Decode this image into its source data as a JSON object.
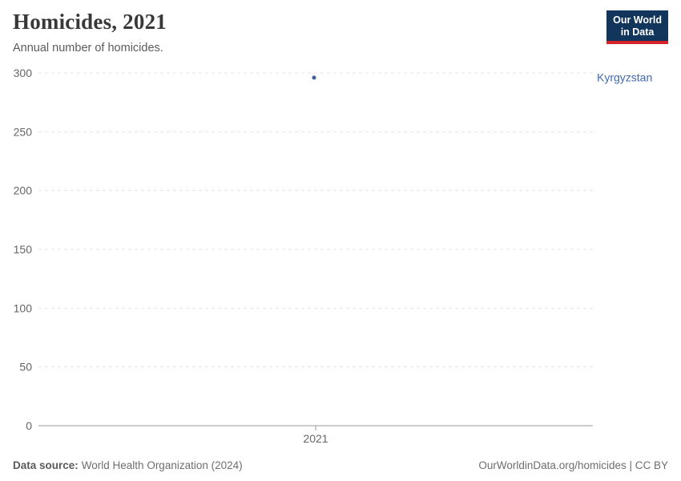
{
  "header": {
    "title": "Homicides, 2021",
    "subtitle": "Annual number of homicides."
  },
  "logo": {
    "line1": "Our World",
    "line2": "in Data",
    "bg_color": "#12355b",
    "accent_color": "#d8232a"
  },
  "chart_data": {
    "type": "scatter",
    "title": "Homicides, 2021",
    "x": [
      2021
    ],
    "series": [
      {
        "name": "Kyrgyzstan",
        "values": [
          296
        ]
      }
    ],
    "xlabel": "",
    "ylabel": "",
    "ylim": [
      0,
      300
    ],
    "yticks": [
      0,
      50,
      100,
      150,
      200,
      250,
      300
    ],
    "xticks": [
      "2021"
    ],
    "grid": true,
    "gridline_style": "dashed",
    "legend_position": "right-of-point",
    "colors": {
      "point": "#3d5e96",
      "entity_label": "#4169ad",
      "gridline": "#e4e4e4",
      "axis": "#999999",
      "tick_text": "#666666"
    }
  },
  "footer": {
    "source_label": "Data source:",
    "source_value": "World Health Organization (2024)",
    "credit": "OurWorldinData.org/homicides | CC BY"
  }
}
